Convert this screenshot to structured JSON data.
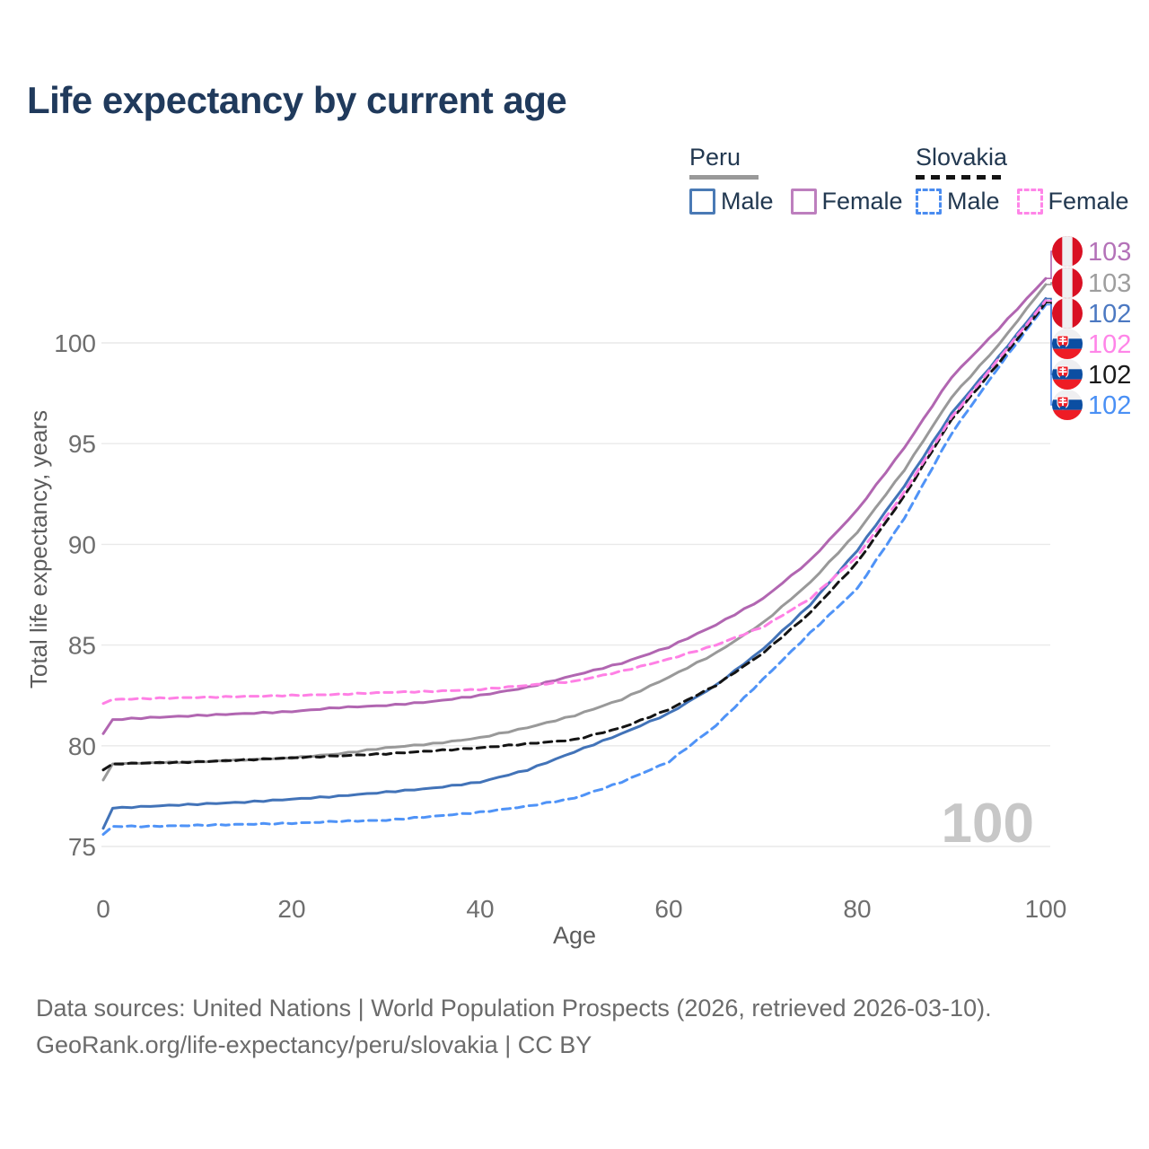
{
  "title": "Life expectancy by current age",
  "legend": {
    "groups": [
      {
        "label": "Peru",
        "swatch_style": "solid",
        "swatch_color": "#999999",
        "items": [
          {
            "label": "Male",
            "color": "#4a7ab5",
            "dashed": false
          },
          {
            "label": "Female",
            "color": "#bd7fbe",
            "dashed": false
          }
        ]
      },
      {
        "label": "Slovakia",
        "swatch_style": "dashed",
        "swatch_color": "#141414",
        "items": [
          {
            "label": "Male",
            "color": "#4a8cf0",
            "dashed": true
          },
          {
            "label": "Female",
            "color": "#ff85e8",
            "dashed": true
          }
        ]
      }
    ]
  },
  "watermark": "100",
  "footer": {
    "line1": "Data sources: United Nations | World Population Prospects (2026, retrieved 2026-03-10).",
    "line2": "GeoRank.org/life-expectancy/peru/slovakia | CC BY"
  },
  "chart_data": {
    "type": "line",
    "title": "Life expectancy by current age",
    "xlabel": "Age",
    "ylabel": "Total life expectancy, years",
    "x_ticks": [
      0,
      20,
      40,
      60,
      80,
      100
    ],
    "y_ticks": [
      75,
      80,
      85,
      90,
      95,
      100
    ],
    "xlim": [
      0,
      100
    ],
    "ylim": [
      74,
      104
    ],
    "grid": "horizontal",
    "legend_position": "top-right",
    "ages": [
      0,
      1,
      5,
      10,
      15,
      20,
      25,
      30,
      35,
      40,
      45,
      50,
      55,
      60,
      65,
      70,
      75,
      80,
      85,
      90,
      95,
      100
    ],
    "series": [
      {
        "id": "peru_female",
        "name": "Peru Female",
        "color": "#b166b1",
        "dashed": false,
        "end_label": "103",
        "end_label_color": "#b472b8",
        "flag": "peru",
        "values": [
          80.6,
          81.3,
          81.4,
          81.5,
          81.6,
          81.7,
          81.9,
          82.0,
          82.2,
          82.5,
          82.9,
          83.5,
          84.1,
          84.9,
          86.0,
          87.3,
          89.2,
          91.7,
          94.8,
          98.3,
          100.7,
          103.2
        ]
      },
      {
        "id": "peru_both",
        "name": "Peru",
        "color": "#999999",
        "dashed": false,
        "end_label": "103",
        "end_label_color": "#9e9e9e",
        "flag": "peru",
        "values": [
          78.3,
          79.1,
          79.15,
          79.2,
          79.3,
          79.4,
          79.6,
          79.9,
          80.1,
          80.4,
          80.9,
          81.5,
          82.3,
          83.4,
          84.6,
          86.1,
          88.1,
          90.6,
          93.7,
          97.3,
          99.9,
          102.9
        ]
      },
      {
        "id": "peru_male",
        "name": "Peru Male",
        "color": "#4273b8",
        "dashed": false,
        "end_label": "102",
        "end_label_color": "#4c79c2",
        "flag": "peru",
        "values": [
          75.9,
          76.9,
          77.0,
          77.1,
          77.2,
          77.35,
          77.5,
          77.7,
          77.9,
          78.2,
          78.8,
          79.7,
          80.6,
          81.6,
          83.0,
          84.8,
          87.0,
          89.7,
          92.9,
          96.5,
          99.3,
          102.2
        ]
      },
      {
        "id": "slovakia_female",
        "name": "Slovakia Female",
        "color": "#ff80e5",
        "dashed": true,
        "end_label": "102",
        "end_label_color": "#ff85e8",
        "flag": "slovakia",
        "values": [
          82.1,
          82.3,
          82.35,
          82.4,
          82.45,
          82.5,
          82.55,
          82.65,
          82.7,
          82.8,
          83.0,
          83.2,
          83.7,
          84.3,
          85.0,
          85.9,
          87.3,
          89.4,
          92.6,
          96.3,
          99.2,
          102.1
        ]
      },
      {
        "id": "slovakia_both",
        "name": "Slovakia",
        "color": "#141414",
        "dashed": true,
        "end_label": "102",
        "end_label_color": "#1a1a1a",
        "flag": "slovakia",
        "values": [
          78.8,
          79.1,
          79.15,
          79.2,
          79.3,
          79.4,
          79.5,
          79.6,
          79.75,
          79.9,
          80.1,
          80.3,
          80.9,
          81.8,
          83.0,
          84.6,
          86.6,
          89.1,
          92.4,
          96.2,
          99.0,
          102.0
        ]
      },
      {
        "id": "slovakia_male",
        "name": "Slovakia Male",
        "color": "#4f93f7",
        "dashed": true,
        "end_label": "102",
        "end_label_color": "#4a90f5",
        "flag": "slovakia",
        "values": [
          75.6,
          76.0,
          76.0,
          76.05,
          76.1,
          76.15,
          76.25,
          76.3,
          76.5,
          76.7,
          77.0,
          77.4,
          78.2,
          79.2,
          81.0,
          83.3,
          85.6,
          87.8,
          91.3,
          95.5,
          98.8,
          101.9
        ]
      }
    ]
  }
}
